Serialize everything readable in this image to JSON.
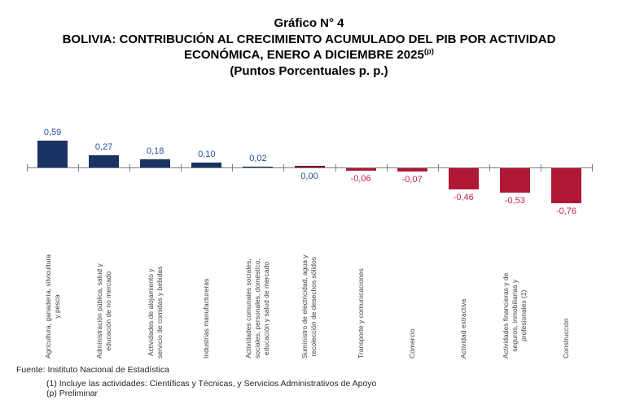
{
  "title": {
    "line1": "Gráfico N° 4",
    "line2": "BOLIVIA: CONTRIBUCIÓN AL CRECIMIENTO ACUMULADO DEL PIB POR ACTIVIDAD ECONÓMICA, ENERO A DICIEMBRE 2025",
    "line2_sup": "(p)",
    "line3": "(Puntos Porcentuales p. p.)"
  },
  "chart_data": {
    "type": "bar",
    "title": "Gráfico N° 4 — BOLIVIA: Contribución al crecimiento acumulado del PIB por actividad económica, enero a diciembre 2025(p)",
    "ylabel": "Puntos Porcentuales p. p.",
    "xlabel": "",
    "ylim": [
      -0.9,
      0.7
    ],
    "grid": false,
    "legend": "none",
    "categories": [
      "Agricultura, ganadería, silvicultura\ny pesca",
      "Administración pública, salud y\neducación de no mercado",
      "Actividades de alojamiento y\nservicio de comidas y bebidas",
      "Industrias manufactureras",
      "Actividades comunales sociales,\nsociales, personales, doméstico,\neducación y salud de mercado",
      "Suministro de electricidad, agua y\nrecolección de desechos sólidos",
      "Transporte y comunicaciones",
      "Comercio",
      "Actividad extractiva",
      "Actividades financieras y de\nseguros, inmobiliarias y\nprofesionales (1)",
      "Construcción"
    ],
    "values": [
      0.59,
      0.27,
      0.18,
      0.1,
      0.02,
      0.0,
      -0.06,
      -0.07,
      -0.46,
      -0.53,
      -0.76
    ],
    "value_labels": [
      "0,59",
      "0,27",
      "0,18",
      "0,10",
      "0,02",
      "0,00",
      "-0,06",
      "-0,07",
      "-0,46",
      "-0,53",
      "-0,76"
    ],
    "colors": {
      "bar_positive": "#1A3365",
      "bar_negative": "#AF1935",
      "bar_zero": "#7D0C20",
      "label_positive": "#1F4E9B",
      "label_negative": "#C2244A",
      "axis": "#7f7f7f"
    }
  },
  "footer": {
    "line1": "Fuente: Instituto Nacional de Estadística",
    "line2": "(1) Incluye las actividades: Científicas y Técnicas, y Servicios Administrativos de Apoyo",
    "line3": "(p) Preliminar"
  }
}
